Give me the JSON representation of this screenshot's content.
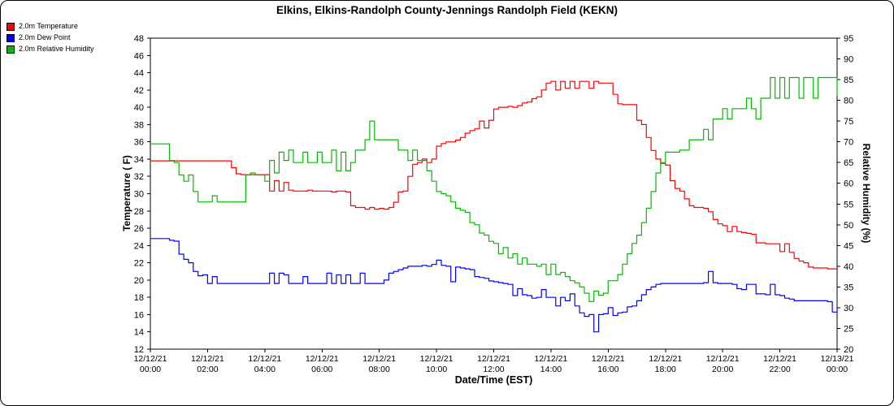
{
  "frame": {
    "background": "#ffffff",
    "border_color": "#000000"
  },
  "legend": {
    "items": [
      {
        "label": "2.0m Temperature",
        "color": "#ff0000"
      },
      {
        "label": "2.0m Dew Point",
        "color": "#0000ff"
      },
      {
        "label": "2.0m Relative Humidity",
        "color": "#00bb00"
      }
    ]
  },
  "chart_data": {
    "type": "line",
    "title": "Elkins, Elkins-Randolph County-Jennings Randolph Field (KEKN)",
    "xlabel": "Date/Time (EST)",
    "ylabel_left": "Temperature ( F)",
    "ylabel_right": "Relative Humidity (%)",
    "grid": "off",
    "legend_position": "top-left",
    "x_range": [
      0,
      24
    ],
    "x_step_hours": 0.1666667,
    "x_unit": "hours since 12/12/21 00:00 EST, samples every 10 min",
    "left_axis": {
      "label": "Temperature ( F)",
      "min": 12,
      "max": 48,
      "step": 2
    },
    "right_axis": {
      "label": "Relative Humidity (%)",
      "min": 20,
      "max": 95,
      "step": 5
    },
    "x_ticks": [
      {
        "hour": 0,
        "date": "12/12/21",
        "time": "00:00"
      },
      {
        "hour": 2,
        "date": "12/12/21",
        "time": "02:00"
      },
      {
        "hour": 4,
        "date": "12/12/21",
        "time": "04:00"
      },
      {
        "hour": 6,
        "date": "12/12/21",
        "time": "06:00"
      },
      {
        "hour": 8,
        "date": "12/12/21",
        "time": "08:00"
      },
      {
        "hour": 10,
        "date": "12/12/21",
        "time": "10:00"
      },
      {
        "hour": 12,
        "date": "12/12/21",
        "time": "12:00"
      },
      {
        "hour": 14,
        "date": "12/12/21",
        "time": "14:00"
      },
      {
        "hour": 16,
        "date": "12/12/21",
        "time": "16:00"
      },
      {
        "hour": 18,
        "date": "12/12/21",
        "time": "18:00"
      },
      {
        "hour": 20,
        "date": "12/12/21",
        "time": "20:00"
      },
      {
        "hour": 22,
        "date": "12/12/21",
        "time": "22:00"
      },
      {
        "hour": 24,
        "date": "12/13/21",
        "time": "00:00"
      }
    ],
    "series": [
      {
        "name": "2.0m Temperature",
        "color": "#ff0000",
        "axis": "left",
        "unit": "F",
        "values": [
          33.8,
          33.8,
          33.8,
          33.8,
          33.8,
          33.8,
          33.8,
          33.8,
          33.8,
          33.8,
          33.8,
          33.8,
          33.8,
          33.8,
          33.8,
          33.8,
          33.8,
          33.0,
          32.3,
          32.2,
          32.2,
          32.2,
          32.2,
          32.2,
          32.2,
          30.3,
          31.5,
          30.3,
          31.3,
          30.4,
          30.3,
          30.3,
          30.3,
          30.4,
          30.3,
          30.3,
          30.3,
          30.3,
          30.2,
          30.3,
          30.3,
          30.2,
          28.6,
          28.4,
          28.4,
          28.2,
          28.4,
          28.2,
          28.3,
          28.2,
          28.4,
          29.0,
          30.2,
          30.3,
          32.0,
          33.4,
          33.6,
          34.0,
          33.6,
          34.0,
          35.5,
          35.8,
          36.0,
          36.0,
          36.2,
          36.5,
          37.0,
          37.3,
          37.5,
          38.4,
          37.6,
          38.5,
          39.8,
          40.0,
          40.0,
          40.1,
          40.0,
          40.2,
          40.5,
          40.6,
          41.0,
          41.2,
          42.0,
          42.8,
          43.0,
          42.0,
          43.0,
          42.2,
          43.0,
          42.2,
          43.0,
          43.0,
          42.2,
          43.0,
          42.8,
          42.8,
          42.8,
          41.5,
          40.4,
          40.3,
          40.3,
          40.3,
          38.5,
          38.0,
          36.5,
          35.0,
          34.0,
          33.5,
          33.3,
          31.5,
          30.6,
          30.3,
          29.4,
          28.6,
          28.4,
          28.4,
          28.3,
          27.9,
          27.0,
          26.5,
          26.3,
          25.6,
          26.2,
          25.6,
          25.5,
          25.4,
          25.3,
          24.3,
          24.3,
          24.2,
          24.2,
          24.2,
          23.3,
          24.2,
          23.2,
          22.5,
          22.2,
          22.0,
          21.5,
          21.4,
          21.4,
          21.4,
          21.3,
          21.3,
          21.3
        ]
      },
      {
        "name": "2.0m Dew Point",
        "color": "#0000ff",
        "axis": "left",
        "unit": "F",
        "values": [
          24.8,
          24.8,
          24.8,
          24.8,
          24.6,
          24.5,
          23.0,
          22.4,
          22.0,
          21.0,
          20.5,
          20.6,
          19.6,
          20.4,
          19.6,
          19.6,
          19.6,
          19.6,
          19.6,
          19.6,
          19.6,
          19.6,
          19.6,
          19.6,
          19.6,
          20.8,
          19.6,
          20.8,
          20.6,
          19.6,
          19.6,
          19.6,
          20.4,
          19.6,
          19.6,
          19.6,
          19.6,
          20.8,
          19.6,
          20.6,
          19.6,
          20.6,
          19.6,
          19.6,
          20.8,
          19.6,
          19.6,
          19.6,
          19.6,
          20.0,
          20.8,
          21.0,
          21.2,
          21.4,
          21.6,
          21.6,
          21.6,
          21.7,
          21.6,
          21.8,
          22.3,
          21.7,
          21.6,
          19.8,
          21.5,
          21.4,
          21.3,
          21.2,
          20.4,
          20.3,
          20.2,
          19.9,
          19.8,
          19.7,
          19.6,
          19.5,
          18.2,
          19.0,
          18.3,
          18.2,
          17.9,
          18.0,
          18.9,
          18.0,
          18.0,
          17.0,
          18.0,
          17.6,
          18.4,
          17.0,
          16.2,
          15.8,
          16.0,
          14.0,
          16.0,
          16.1,
          16.8,
          15.9,
          16.2,
          16.3,
          16.9,
          17.0,
          17.6,
          18.3,
          18.9,
          19.2,
          19.5,
          19.6,
          19.6,
          19.6,
          19.6,
          19.6,
          19.6,
          19.6,
          19.6,
          19.6,
          19.7,
          21.0,
          19.7,
          19.6,
          19.6,
          19.6,
          19.5,
          19.0,
          18.9,
          19.5,
          19.5,
          18.4,
          18.4,
          18.3,
          19.5,
          18.3,
          18.2,
          17.9,
          17.8,
          17.6,
          17.6,
          17.6,
          17.6,
          17.6,
          17.6,
          17.6,
          17.5,
          16.3,
          16.8
        ]
      },
      {
        "name": "2.0m Relative Humidity",
        "color": "#00bb00",
        "axis": "right",
        "unit": "%",
        "values": [
          69.5,
          69.5,
          69.5,
          69.5,
          65.5,
          65.0,
          62.0,
          60.5,
          62.0,
          58.0,
          55.5,
          55.5,
          55.5,
          57.0,
          55.5,
          55.5,
          55.5,
          55.5,
          55.5,
          55.5,
          62.0,
          62.5,
          62.0,
          62.0,
          60.5,
          65.5,
          62.5,
          67.5,
          65.5,
          68.0,
          65.0,
          65.0,
          67.5,
          65.0,
          65.0,
          67.5,
          65.0,
          65.0,
          68.0,
          63.0,
          67.5,
          63.0,
          65.0,
          68.0,
          68.0,
          70.5,
          75.0,
          70.5,
          70.5,
          70.5,
          70.5,
          70.5,
          68.0,
          68.0,
          65.5,
          68.0,
          65.5,
          65.5,
          63.0,
          60.5,
          58.0,
          57.5,
          57.0,
          55.5,
          54.0,
          53.5,
          53.0,
          50.5,
          50.0,
          48.0,
          47.5,
          46.0,
          45.5,
          43.0,
          44.5,
          42.0,
          43.0,
          40.5,
          42.0,
          40.5,
          40.5,
          40.0,
          40.5,
          38.0,
          40.5,
          38.0,
          38.5,
          37.5,
          36.5,
          36.0,
          35.0,
          33.5,
          31.5,
          34.0,
          33.0,
          33.5,
          36.5,
          36.5,
          38.0,
          40.5,
          43.0,
          45.5,
          47.5,
          50.5,
          54.0,
          58.0,
          62.5,
          65.0,
          67.5,
          67.5,
          67.5,
          68.0,
          68.0,
          70.5,
          70.5,
          70.5,
          73.0,
          70.5,
          75.5,
          75.5,
          78.0,
          75.5,
          78.0,
          78.0,
          78.0,
          80.5,
          78.0,
          75.5,
          80.5,
          80.5,
          85.5,
          80.5,
          85.5,
          80.5,
          85.5,
          85.5,
          80.5,
          85.5,
          85.5,
          80.5,
          85.5,
          85.5,
          85.5,
          85.5,
          81.0
        ]
      }
    ]
  }
}
